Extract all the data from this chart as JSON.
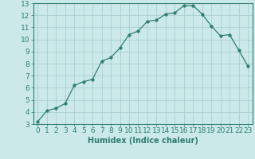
{
  "x": [
    0,
    1,
    2,
    3,
    4,
    5,
    6,
    7,
    8,
    9,
    10,
    11,
    12,
    13,
    14,
    15,
    16,
    17,
    18,
    19,
    20,
    21,
    22,
    23
  ],
  "y": [
    3.2,
    4.1,
    4.3,
    4.7,
    6.2,
    6.5,
    6.7,
    8.2,
    8.5,
    9.3,
    10.4,
    10.7,
    11.5,
    11.6,
    12.1,
    12.2,
    12.8,
    12.8,
    12.1,
    11.1,
    10.3,
    10.4,
    9.1,
    7.8
  ],
  "line_color": "#2e7d6e",
  "marker": "o",
  "marker_size": 2.5,
  "bg_color": "#cce9e9",
  "grid_color": "#aacfcf",
  "xlabel": "Humidex (Indice chaleur)",
  "xlim": [
    -0.5,
    23.5
  ],
  "ylim": [
    3,
    13
  ],
  "xticks": [
    0,
    1,
    2,
    3,
    4,
    5,
    6,
    7,
    8,
    9,
    10,
    11,
    12,
    13,
    14,
    15,
    16,
    17,
    18,
    19,
    20,
    21,
    22,
    23
  ],
  "yticks": [
    3,
    4,
    5,
    6,
    7,
    8,
    9,
    10,
    11,
    12,
    13
  ],
  "label_fontsize": 7,
  "tick_fontsize": 6.5
}
